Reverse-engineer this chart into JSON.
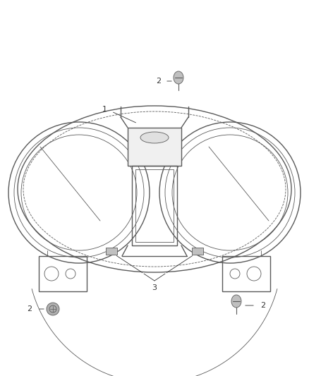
{
  "bg_color": "#ffffff",
  "line_color": "#5a5a5a",
  "line_width": 1.0,
  "thin_line": 0.6,
  "label_fontsize": 8,
  "label_color": "#333333",
  "fig_width": 4.38,
  "fig_height": 5.33,
  "dpi": 100
}
